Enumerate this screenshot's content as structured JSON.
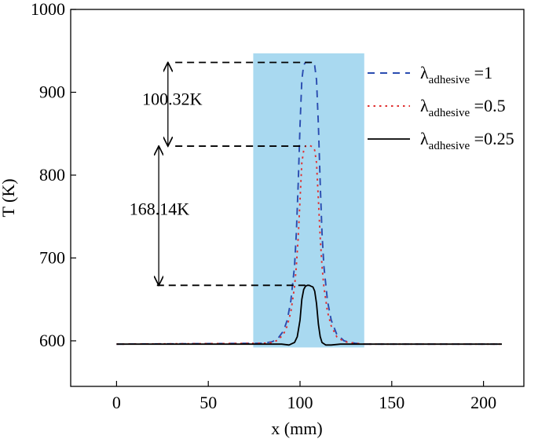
{
  "chart_data": {
    "type": "line",
    "xlabel": "x (mm)",
    "ylabel": "T (K)",
    "xlim": [
      -25,
      222
    ],
    "ylim": [
      545,
      1000
    ],
    "xticks": [
      0,
      50,
      100,
      150,
      200
    ],
    "yticks": [
      600,
      700,
      800,
      900,
      1000
    ],
    "x_tick_labels": [
      "0",
      "50",
      "100",
      "150",
      "200"
    ],
    "y_tick_labels": [
      "600",
      "700",
      "800",
      "900",
      "1000"
    ],
    "grid": false,
    "legend_position": "top-right",
    "shaded_region": {
      "x": [
        74.5,
        135
      ],
      "y": [
        592,
        947
      ],
      "color": "#a9d9f0"
    },
    "series": [
      {
        "name": "λadhesive =1",
        "symbol": "λ",
        "subscript": "adhesive",
        "suffix": " =1",
        "color": "#2a4cb0",
        "dash": "dashed",
        "x": [
          0,
          80,
          85,
          88,
          91,
          93,
          95,
          97,
          98,
          99,
          100,
          101,
          102,
          103,
          104,
          105,
          106,
          107,
          108,
          109,
          110,
          111,
          112,
          113,
          115,
          117,
          120,
          124,
          130,
          135,
          210
        ],
        "y": [
          596,
          597,
          599,
          603,
          612,
          625,
          648,
          690,
          730,
          790,
          860,
          915,
          933,
          936,
          936,
          936,
          936,
          935,
          932,
          915,
          860,
          790,
          730,
          690,
          648,
          625,
          608,
          600,
          597,
          596,
          596
        ]
      },
      {
        "name": "λadhesive =0.5",
        "symbol": "λ",
        "subscript": "adhesive",
        "suffix": " =0.5",
        "color": "#e03030",
        "dash": "dotted",
        "x": [
          0,
          80,
          85,
          88,
          91,
          93,
          95,
          97,
          98,
          99,
          100,
          101,
          102,
          103,
          104,
          105,
          106,
          107,
          108,
          109,
          110,
          111,
          112,
          113,
          115,
          117,
          120,
          124,
          130,
          135,
          210
        ],
        "y": [
          596,
          597,
          598,
          601,
          608,
          618,
          635,
          665,
          690,
          725,
          770,
          815,
          830,
          835,
          836,
          836,
          835,
          834,
          830,
          815,
          770,
          725,
          690,
          665,
          635,
          618,
          605,
          599,
          597,
          596,
          596
        ]
      },
      {
        "name": "λadhesive =0.25",
        "symbol": "λ",
        "subscript": "adhesive",
        "suffix": " =0.25",
        "color": "#000000",
        "dash": "solid",
        "x": [
          0,
          85,
          90,
          94,
          97,
          98.5,
          100,
          101,
          102,
          103,
          104,
          105,
          106,
          107,
          108,
          109,
          110,
          111,
          112,
          114,
          117,
          122,
          130,
          210
        ],
        "y": [
          596,
          596,
          596,
          595,
          598,
          605,
          625,
          650,
          662,
          666,
          667,
          667,
          666,
          665,
          660,
          645,
          620,
          605,
          598,
          595,
          595,
          596,
          596,
          596
        ]
      }
    ],
    "annotations": [
      {
        "text": "100.32K",
        "x": 14,
        "y": 885
      },
      {
        "text": "168.14K",
        "x": 7,
        "y": 752
      }
    ],
    "reference_lines": [
      {
        "x_from": 32,
        "x_to": 108,
        "y": 936
      },
      {
        "x_from": 32,
        "x_to": 103,
        "y": 835
      },
      {
        "x_from": 22,
        "x_to": 105,
        "y": 667
      }
    ],
    "arrows": [
      {
        "x": 28,
        "y_from": 936,
        "y_to": 835
      },
      {
        "x": 23,
        "y_from": 835,
        "y_to": 667
      }
    ]
  }
}
